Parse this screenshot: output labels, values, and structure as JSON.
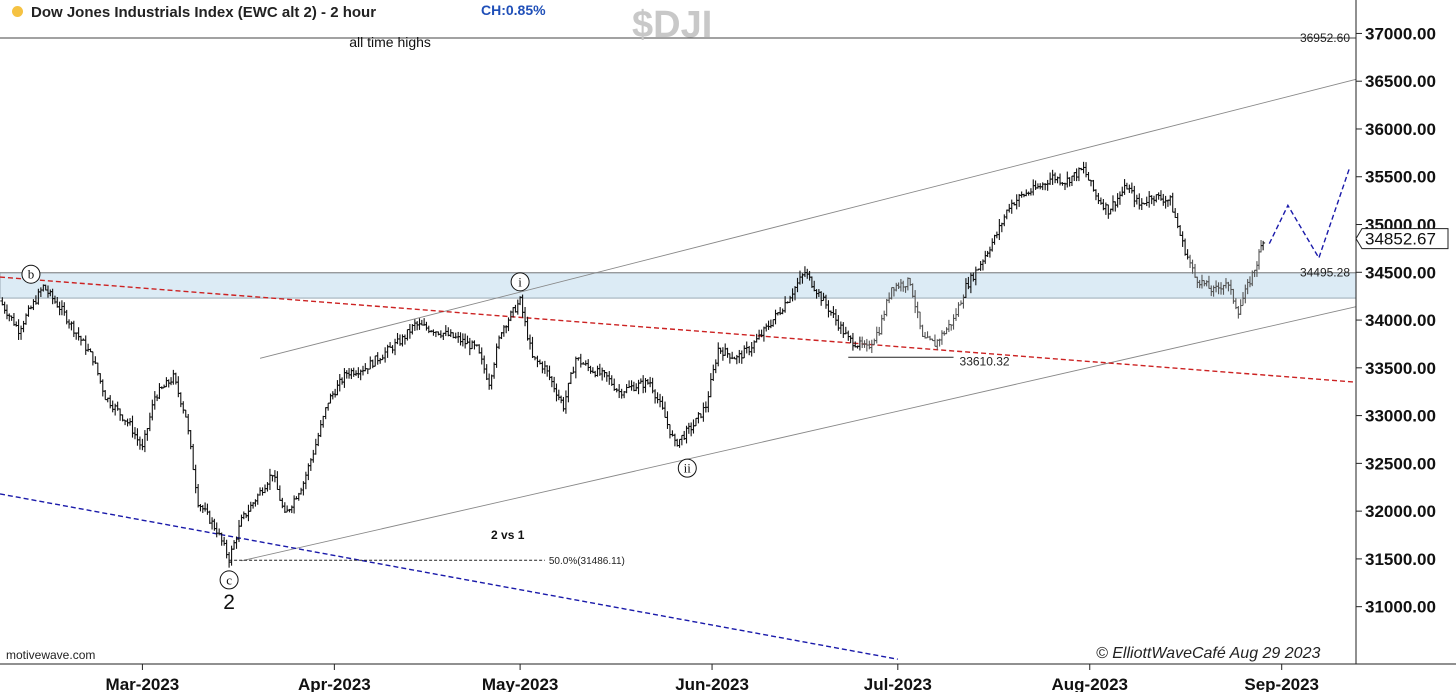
{
  "header": {
    "title": "Dow Jones Industrials Index (EWC alt 2) - 2 hour",
    "change": "CH:0.85%",
    "symbol": "$DJI",
    "dot_color": "#f5c242",
    "change_color": "#1f4fb8"
  },
  "footer": {
    "brand": "motivewave.com",
    "copyright": "© ElliottWaveCafé  Aug 29 2023"
  },
  "chart_data": {
    "type": "ohlc",
    "title": "Dow Jones Industrials Index (EWC alt 2) - 2 hour",
    "x_start": "2023-02-06",
    "x_end": "2023-09-13",
    "ylim": [
      30400,
      37350
    ],
    "yticks": [
      {
        "value": 31000,
        "label": "31000.00"
      },
      {
        "value": 31500,
        "label": "31500.00"
      },
      {
        "value": 32000,
        "label": "32000.00"
      },
      {
        "value": 32500,
        "label": "32500.00"
      },
      {
        "value": 33000,
        "label": "33000.00"
      },
      {
        "value": 33500,
        "label": "33500.00"
      },
      {
        "value": 34000,
        "label": "34000.00"
      },
      {
        "value": 34500,
        "label": "34500.00"
      },
      {
        "value": 35000,
        "label": "35000.00"
      },
      {
        "value": 35500,
        "label": "35500.00"
      },
      {
        "value": 36000,
        "label": "36000.00"
      },
      {
        "value": 36500,
        "label": "36500.00"
      },
      {
        "value": 37000,
        "label": "37000.00"
      }
    ],
    "xticks": [
      {
        "date": "2023-03-01",
        "label": "Mar-2023"
      },
      {
        "date": "2023-04-01",
        "label": "Apr-2023"
      },
      {
        "date": "2023-05-01",
        "label": "May-2023"
      },
      {
        "date": "2023-06-01",
        "label": "Jun-2023"
      },
      {
        "date": "2023-07-01",
        "label": "Jul-2023"
      },
      {
        "date": "2023-08-01",
        "label": "Aug-2023"
      },
      {
        "date": "2023-09-01",
        "label": "Sep-2023"
      }
    ],
    "last_price": {
      "value": 34852.67,
      "label": "34852.67"
    },
    "path": [
      {
        "date": "2023-02-06",
        "close": 34200
      },
      {
        "date": "2023-02-09",
        "close": 33900
      },
      {
        "date": "2023-02-13",
        "close": 34350
      },
      {
        "date": "2023-02-16",
        "close": 34100
      },
      {
        "date": "2023-02-21",
        "close": 33600
      },
      {
        "date": "2023-02-23",
        "close": 33200
      },
      {
        "date": "2023-02-27",
        "close": 32900
      },
      {
        "date": "2023-03-01",
        "close": 32650
      },
      {
        "date": "2023-03-03",
        "close": 33200
      },
      {
        "date": "2023-03-06",
        "close": 33400
      },
      {
        "date": "2023-03-08",
        "close": 33000
      },
      {
        "date": "2023-03-10",
        "close": 32100
      },
      {
        "date": "2023-03-13",
        "close": 31800
      },
      {
        "date": "2023-03-15",
        "close": 31500
      },
      {
        "date": "2023-03-17",
        "close": 31900
      },
      {
        "date": "2023-03-20",
        "close": 32200
      },
      {
        "date": "2023-03-22",
        "close": 32400
      },
      {
        "date": "2023-03-24",
        "close": 31950
      },
      {
        "date": "2023-03-27",
        "close": 32300
      },
      {
        "date": "2023-03-29",
        "close": 32700
      },
      {
        "date": "2023-03-31",
        "close": 33150
      },
      {
        "date": "2023-04-03",
        "close": 33450
      },
      {
        "date": "2023-04-06",
        "close": 33500
      },
      {
        "date": "2023-04-10",
        "close": 33700
      },
      {
        "date": "2023-04-12",
        "close": 33800
      },
      {
        "date": "2023-04-14",
        "close": 33950
      },
      {
        "date": "2023-04-17",
        "close": 33900
      },
      {
        "date": "2023-04-19",
        "close": 33850
      },
      {
        "date": "2023-04-21",
        "close": 33800
      },
      {
        "date": "2023-04-24",
        "close": 33700
      },
      {
        "date": "2023-04-26",
        "close": 33350
      },
      {
        "date": "2023-04-28",
        "close": 33900
      },
      {
        "date": "2023-05-01",
        "close": 34200
      },
      {
        "date": "2023-05-03",
        "close": 33600
      },
      {
        "date": "2023-05-05",
        "close": 33500
      },
      {
        "date": "2023-05-08",
        "close": 33100
      },
      {
        "date": "2023-05-10",
        "close": 33600
      },
      {
        "date": "2023-05-12",
        "close": 33500
      },
      {
        "date": "2023-05-15",
        "close": 33400
      },
      {
        "date": "2023-05-17",
        "close": 33250
      },
      {
        "date": "2023-05-19",
        "close": 33300
      },
      {
        "date": "2023-05-22",
        "close": 33350
      },
      {
        "date": "2023-05-24",
        "close": 33050
      },
      {
        "date": "2023-05-26",
        "close": 32700
      },
      {
        "date": "2023-05-29",
        "close": 32900
      },
      {
        "date": "2023-05-31",
        "close": 33100
      },
      {
        "date": "2023-06-02",
        "close": 33700
      },
      {
        "date": "2023-06-05",
        "close": 33600
      },
      {
        "date": "2023-06-07",
        "close": 33700
      },
      {
        "date": "2023-06-09",
        "close": 33850
      },
      {
        "date": "2023-06-12",
        "close": 34100
      },
      {
        "date": "2023-06-14",
        "close": 34300
      },
      {
        "date": "2023-06-16",
        "close": 34500
      },
      {
        "date": "2023-06-19",
        "close": 34200
      },
      {
        "date": "2023-06-21",
        "close": 34000
      },
      {
        "date": "2023-06-23",
        "close": 33800
      },
      {
        "date": "2023-06-26",
        "close": 33700
      },
      {
        "date": "2023-06-28",
        "close": 33900
      },
      {
        "date": "2023-06-30",
        "close": 34350
      },
      {
        "date": "2023-07-03",
        "close": 34400
      },
      {
        "date": "2023-07-05",
        "close": 33800
      },
      {
        "date": "2023-07-07",
        "close": 33750
      },
      {
        "date": "2023-07-10",
        "close": 34000
      },
      {
        "date": "2023-07-12",
        "close": 34350
      },
      {
        "date": "2023-07-14",
        "close": 34550
      },
      {
        "date": "2023-07-17",
        "close": 34900
      },
      {
        "date": "2023-07-19",
        "close": 35200
      },
      {
        "date": "2023-07-21",
        "close": 35300
      },
      {
        "date": "2023-07-24",
        "close": 35400
      },
      {
        "date": "2023-07-26",
        "close": 35500
      },
      {
        "date": "2023-07-28",
        "close": 35450
      },
      {
        "date": "2023-07-31",
        "close": 35580
      },
      {
        "date": "2023-08-02",
        "close": 35300
      },
      {
        "date": "2023-08-04",
        "close": 35150
      },
      {
        "date": "2023-08-07",
        "close": 35400
      },
      {
        "date": "2023-08-09",
        "close": 35200
      },
      {
        "date": "2023-08-11",
        "close": 35300
      },
      {
        "date": "2023-08-14",
        "close": 35250
      },
      {
        "date": "2023-08-16",
        "close": 34800
      },
      {
        "date": "2023-08-18",
        "close": 34450
      },
      {
        "date": "2023-08-21",
        "close": 34300
      },
      {
        "date": "2023-08-23",
        "close": 34400
      },
      {
        "date": "2023-08-25",
        "close": 34100
      },
      {
        "date": "2023-08-28",
        "close": 34600
      },
      {
        "date": "2023-08-29",
        "close": 34852
      }
    ],
    "projection": [
      {
        "date": "2023-08-30",
        "value": 34800
      },
      {
        "date": "2023-09-02",
        "value": 35200
      },
      {
        "date": "2023-09-07",
        "value": 34650
      },
      {
        "date": "2023-09-12",
        "value": 35600
      }
    ],
    "horizontal_lines": [
      {
        "value": 36952.6,
        "label": "36952.60",
        "color": "#444444"
      },
      {
        "value": 34495.28,
        "label": "34495.28",
        "color": "#888888"
      }
    ],
    "resistance_zone": {
      "from": 34230,
      "to": 34495.28,
      "color": "#dcebf5"
    },
    "level_33610": {
      "start": "2023-06-23",
      "end": "2023-07-10",
      "value": 33610.32,
      "label": "33610.32"
    },
    "fib_level": {
      "start": "2023-03-15",
      "end": "2023-05-05",
      "value": 31486.11,
      "label": "50.0%(31486.11)"
    },
    "trendlines": [
      {
        "name": "upper-channel",
        "start": {
          "date": "2023-03-20",
          "value": 33600
        },
        "end": {
          "date": "2023-09-13",
          "value": 36520
        },
        "color": "#888888",
        "dash": false
      },
      {
        "name": "lower-channel",
        "start": {
          "date": "2023-03-17",
          "value": 31480
        },
        "end": {
          "date": "2023-09-13",
          "value": 34140
        },
        "color": "#888888",
        "dash": false
      },
      {
        "name": "red-trendline",
        "start": {
          "date": "2023-02-06",
          "value": 34450
        },
        "end": {
          "date": "2023-09-13",
          "value": 33350
        },
        "color": "#cc2222",
        "dash": true
      },
      {
        "name": "blue-trendline",
        "start": {
          "date": "2023-02-06",
          "value": 32180
        },
        "end": {
          "date": "2023-07-01",
          "value": 30450
        },
        "color": "#1a1aaa",
        "dash": true
      }
    ],
    "wave_labels": [
      {
        "label": "b",
        "date": "2023-02-11",
        "value": 34480,
        "circled": true
      },
      {
        "label": "i",
        "date": "2023-05-01",
        "value": 34400,
        "circled": true
      },
      {
        "label": "ii",
        "date": "2023-05-28",
        "value": 32450,
        "circled": true
      },
      {
        "label": "c",
        "date": "2023-03-15",
        "value": 31280,
        "circled": true
      },
      {
        "label": "2",
        "date": "2023-03-15",
        "value": 31060,
        "circled": false
      }
    ],
    "annotations": [
      {
        "text": "all time highs",
        "date": "2023-04-10",
        "value": 36860
      },
      {
        "text": "2 vs 1",
        "date": "2023-04-29",
        "value": 31710
      }
    ]
  }
}
